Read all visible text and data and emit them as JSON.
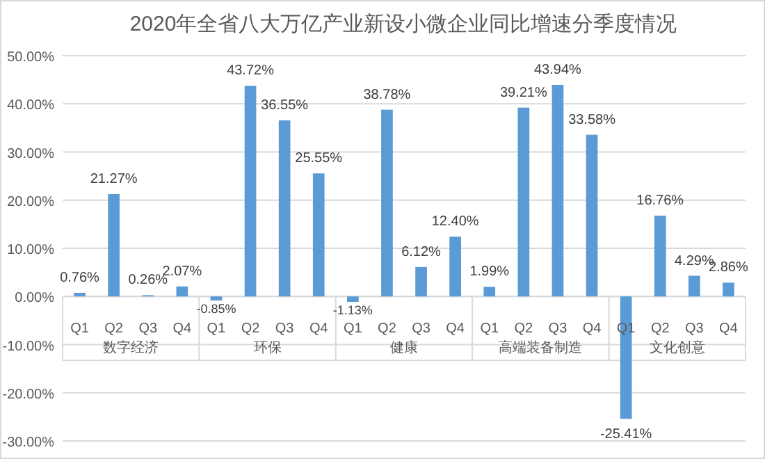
{
  "chart_data": {
    "type": "bar",
    "title": "2020年全省八大万亿产业新设小微企业同比增速分季度情况",
    "categories": [
      "Q1",
      "Q2",
      "Q3",
      "Q4",
      "Q1",
      "Q2",
      "Q3",
      "Q4",
      "Q1",
      "Q2",
      "Q3",
      "Q4",
      "Q1",
      "Q2",
      "Q3",
      "Q4",
      "Q1",
      "Q2",
      "Q3",
      "Q4"
    ],
    "annotations": [
      "数字经济",
      "环保",
      "健康",
      "高端装备制造",
      "文化创意"
    ],
    "values": [
      0.76,
      21.27,
      0.26,
      2.07,
      -0.85,
      43.72,
      36.55,
      25.55,
      -1.13,
      38.78,
      6.12,
      12.4,
      1.99,
      39.21,
      43.94,
      33.58,
      -25.41,
      16.76,
      4.29,
      2.86
    ],
    "value_labels": [
      "0.76%",
      "21.27%",
      "0.26%",
      "2.07%",
      "-0.85%",
      "43.72%",
      "36.55%",
      "25.55%",
      "-1.13%",
      "38.78%",
      "6.12%",
      "12.40%",
      "1.99%",
      "39.21%",
      "43.94%",
      "33.58%",
      "-25.41%",
      "16.76%",
      "4.29%",
      "2.86%"
    ],
    "color": "#5b9bd5",
    "ylim": [
      -30,
      50
    ],
    "yticks": [
      {
        "value": -30,
        "label": "-30.00%"
      },
      {
        "value": -20,
        "label": "-20.00%"
      },
      {
        "value": -10,
        "label": "-10.00%"
      },
      {
        "value": 0,
        "label": "0.00%"
      },
      {
        "value": 10,
        "label": "10.00%"
      },
      {
        "value": 20,
        "label": "20.00%"
      },
      {
        "value": 30,
        "label": "30.00%"
      },
      {
        "value": 40,
        "label": "40.00%"
      },
      {
        "value": 50,
        "label": "50.00%"
      }
    ],
    "grid": "y"
  }
}
